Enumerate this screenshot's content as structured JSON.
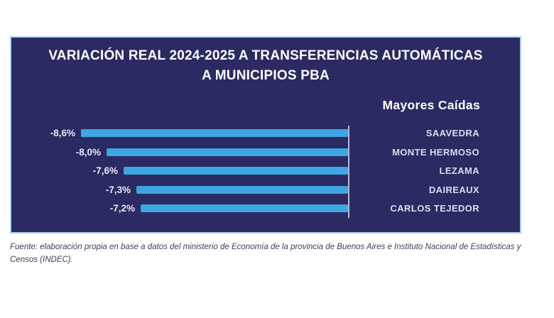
{
  "card": {
    "title_line1": "VARIACIÓN REAL 2024-2025 A TRANSFERENCIAS AUTOMÁTICAS",
    "title_line2": "A MUNICIPIOS PBA",
    "subtitle": "Mayores Caídas",
    "background": "#2b2a62",
    "border_color": "#a8d2ee"
  },
  "chart_data": {
    "type": "bar",
    "orientation": "horizontal, bars extend left from zero baseline on the right",
    "title": "VARIACIÓN REAL 2024-2025 A TRANSFERENCIAS AUTOMÁTICAS A MUNICIPIOS PBA",
    "group_label": "Mayores Caídas",
    "categories": [
      "SAAVEDRA",
      "MONTE HERMOSO",
      "LEZAMA",
      "DAIREAUX",
      "CARLOS TEJEDOR"
    ],
    "values": [
      -8.6,
      -8.0,
      -7.6,
      -7.3,
      -7.2
    ],
    "value_labels": [
      "-8,6%",
      "-8,0%",
      "-7,6%",
      "-7,3%",
      "-7,2%"
    ],
    "unit": "%",
    "xlim": [
      -9,
      0
    ],
    "grid": false,
    "legend_position": "category labels right-aligned on right side",
    "bar_color": "#3ea6e0",
    "axis_color": "rgba(206,211,235,0.85)",
    "value_label_color": "#e9e8f5",
    "category_label_color": "#dedcef"
  },
  "footer": {
    "source_text": "Fuente: elaboración propia en base a datos del ministerio de Economía de la provincia de Buenos Aires e Instituto Nacional de Estadísticas y Censos (INDEC)."
  }
}
